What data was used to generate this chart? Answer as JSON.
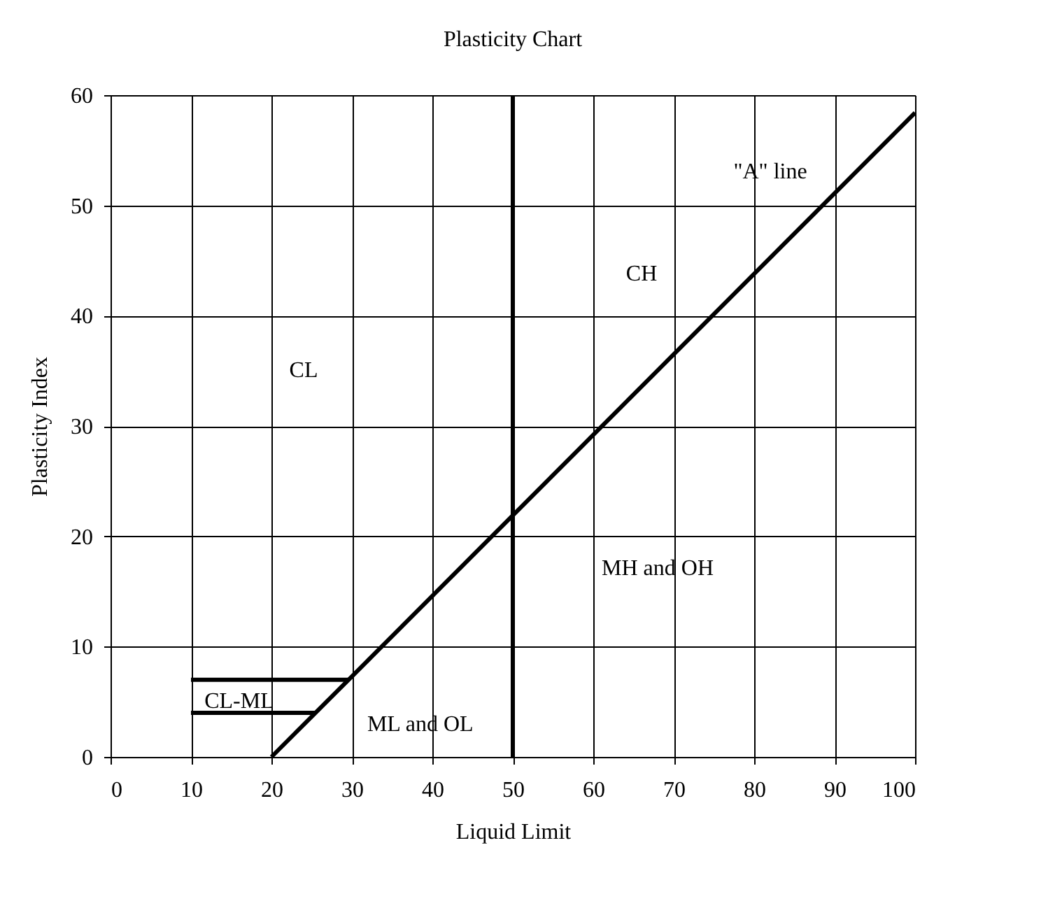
{
  "chart_data": {
    "type": "line",
    "title": "Plasticity Chart",
    "xlabel": "Liquid Limit",
    "ylabel": "Plasticity Index",
    "xlim": [
      0,
      100
    ],
    "ylim": [
      0,
      60
    ],
    "xticks": [
      0,
      10,
      20,
      30,
      40,
      50,
      60,
      70,
      80,
      90,
      100
    ],
    "yticks": [
      0,
      10,
      20,
      30,
      40,
      50,
      60
    ],
    "grid": true,
    "marker": "none",
    "line_style": "solid",
    "series": [
      {
        "color": "#000000",
        "x": [
          20,
          100
        ],
        "values": [
          0,
          58.4
        ]
      },
      {
        "color": "#000000",
        "x": [
          10,
          29.6
        ],
        "values": [
          7,
          7
        ]
      },
      {
        "color": "#000000",
        "x": [
          10,
          25.5
        ],
        "values": [
          4,
          4
        ]
      }
    ],
    "ref_lines": [
      {
        "axis": "x",
        "value": 50,
        "color": "#000000",
        "line_style": "solid"
      }
    ],
    "annotations": [
      "\"A\" line",
      "CH",
      "CL",
      "MH and OH",
      "ML and OL",
      "CL-ML"
    ]
  }
}
